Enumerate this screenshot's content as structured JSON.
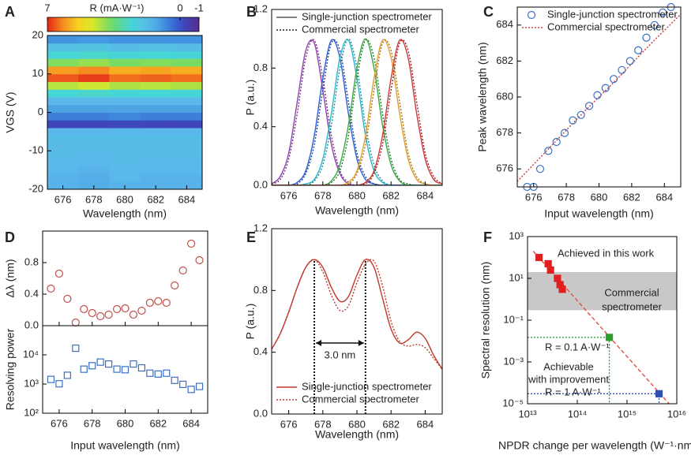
{
  "chart_data": [
    {
      "type": "heatmap",
      "panel_label": "A",
      "x_label": "Wavelength (nm)",
      "y_label": "VGS (V)",
      "xlim": [
        675,
        685
      ],
      "ylim": [
        -20,
        20
      ],
      "xticks": [
        676,
        678,
        680,
        682,
        684
      ],
      "yticks": [
        -20,
        -10,
        0,
        10,
        20
      ],
      "x": [
        676,
        678,
        680,
        682,
        684
      ],
      "y": [
        -19,
        -17,
        -15,
        -13,
        -11,
        -9,
        -7,
        -5,
        -3,
        -1,
        1,
        3,
        5,
        7,
        9,
        11,
        13,
        15,
        17,
        19
      ],
      "z": [
        [
          1.5,
          1.4,
          1.5,
          1.5,
          1.5
        ],
        [
          1.5,
          1.4,
          1.6,
          1.5,
          1.5
        ],
        [
          1.6,
          1.5,
          1.6,
          1.6,
          1.6
        ],
        [
          1.6,
          1.6,
          1.7,
          1.6,
          1.6
        ],
        [
          1.7,
          1.6,
          1.7,
          1.7,
          1.7
        ],
        [
          1.7,
          1.7,
          1.8,
          1.7,
          1.7
        ],
        [
          1.8,
          1.8,
          1.8,
          1.8,
          1.8
        ],
        [
          1.6,
          1.6,
          1.6,
          1.6,
          1.6
        ],
        [
          -0.3,
          -0.3,
          -0.2,
          -0.3,
          -0.3
        ],
        [
          0.6,
          0.6,
          0.7,
          0.6,
          0.6
        ],
        [
          1.2,
          1.2,
          1.2,
          1.2,
          1.2
        ],
        [
          1.6,
          1.6,
          1.6,
          1.6,
          1.6
        ],
        [
          2.6,
          2.7,
          2.6,
          2.6,
          2.6
        ],
        [
          4.3,
          4.5,
          4.2,
          4.3,
          4.2
        ],
        [
          6.6,
          6.8,
          6.4,
          6.5,
          6.4
        ],
        [
          6.0,
          6.2,
          5.8,
          5.9,
          5.8
        ],
        [
          3.8,
          4.0,
          3.7,
          3.8,
          3.7
        ],
        [
          2.6,
          2.7,
          2.5,
          2.6,
          2.5
        ],
        [
          1.9,
          2.0,
          1.8,
          1.9,
          1.8
        ],
        [
          0.9,
          1.0,
          0.9,
          0.9,
          0.9
        ]
      ],
      "colorbar": {
        "label": "R (mA·W⁻¹)",
        "clim": [
          7,
          -1
        ],
        "ticks": [
          7,
          0,
          -1
        ]
      }
    },
    {
      "type": "line",
      "panel_label": "B",
      "x_label": "Wavelength (nm)",
      "y_label": "P (a.u.)",
      "xlim": [
        675,
        685
      ],
      "ylim": [
        0,
        1.2
      ],
      "xticks": [
        676,
        678,
        680,
        682,
        684
      ],
      "yticks": [
        {
          "value": 0,
          "label": "0.0"
        },
        0.4,
        0.8,
        1.2
      ],
      "legend_loc": "upper left",
      "legend": [
        {
          "name": "Single-junction spectrometer",
          "color": "#555555",
          "style": "solid"
        },
        {
          "name": "Commercial spectrometer",
          "color": "#222222",
          "style": "dotted"
        }
      ],
      "x": [
        675,
        675.5,
        676,
        676.5,
        677,
        677.5,
        678,
        678.5,
        679,
        679.5,
        680,
        680.5,
        681,
        681.5,
        682,
        682.5,
        683,
        683.5,
        684,
        684.5,
        685
      ],
      "series": [
        {
          "kind": "line",
          "style": "solid",
          "color": "#8e44ad",
          "values": [
            0.01,
            0.06,
            0.22,
            0.57,
            0.92,
            0.97,
            0.65,
            0.28,
            0.08,
            0.01,
            0,
            0,
            0,
            0,
            0,
            0,
            0,
            0,
            0,
            0,
            0
          ]
        },
        {
          "kind": "line",
          "style": "dotted",
          "color": "#6c3483",
          "values": [
            0.01,
            0.04,
            0.18,
            0.49,
            0.87,
            0.99,
            0.73,
            0.34,
            0.1,
            0.02,
            0,
            0,
            0,
            0,
            0,
            0,
            0,
            0,
            0,
            0,
            0
          ]
        },
        {
          "kind": "line",
          "style": "solid",
          "color": "#2f5fd0",
          "values": [
            0,
            0,
            0,
            0.02,
            0.1,
            0.34,
            0.73,
            0.99,
            0.87,
            0.49,
            0.18,
            0.04,
            0.01,
            0,
            0,
            0,
            0,
            0,
            0,
            0,
            0
          ]
        },
        {
          "kind": "line",
          "style": "dotted",
          "color": "#1f3f9a",
          "values": [
            0,
            0,
            0,
            0.01,
            0.08,
            0.28,
            0.65,
            0.97,
            0.92,
            0.57,
            0.22,
            0.06,
            0.01,
            0,
            0,
            0,
            0,
            0,
            0,
            0,
            0
          ]
        },
        {
          "kind": "line",
          "style": "solid",
          "color": "#2bb5c8",
          "values": [
            0,
            0,
            0,
            0,
            0.01,
            0.04,
            0.18,
            0.49,
            0.87,
            0.99,
            0.73,
            0.34,
            0.1,
            0.02,
            0,
            0,
            0,
            0,
            0,
            0,
            0
          ]
        },
        {
          "kind": "line",
          "style": "dotted",
          "color": "#1a8a9a",
          "values": [
            0,
            0,
            0,
            0,
            0,
            0.03,
            0.14,
            0.41,
            0.8,
            1,
            0.8,
            0.41,
            0.14,
            0.03,
            0,
            0,
            0,
            0,
            0,
            0,
            0
          ]
        },
        {
          "kind": "line",
          "style": "solid",
          "color": "#3aa845",
          "values": [
            0,
            0,
            0,
            0,
            0,
            0,
            0,
            0.03,
            0.14,
            0.41,
            0.8,
            1,
            0.8,
            0.41,
            0.14,
            0.03,
            0,
            0,
            0,
            0,
            0
          ]
        },
        {
          "kind": "line",
          "style": "dotted",
          "color": "#24782e",
          "values": [
            0,
            0,
            0,
            0,
            0,
            0,
            0,
            0.02,
            0.1,
            0.34,
            0.73,
            0.99,
            0.87,
            0.49,
            0.18,
            0.04,
            0.01,
            0,
            0,
            0,
            0
          ]
        },
        {
          "kind": "line",
          "style": "solid",
          "color": "#e0a030",
          "values": [
            0,
            0,
            0,
            0,
            0,
            0,
            0,
            0,
            0,
            0.02,
            0.1,
            0.34,
            0.73,
            0.99,
            0.87,
            0.49,
            0.18,
            0.04,
            0.01,
            0,
            0
          ]
        },
        {
          "kind": "line",
          "style": "dotted",
          "color": "#a87418",
          "values": [
            0,
            0,
            0,
            0,
            0,
            0,
            0,
            0,
            0,
            0.01,
            0.08,
            0.28,
            0.65,
            0.97,
            0.92,
            0.57,
            0.22,
            0.06,
            0.01,
            0,
            0
          ]
        },
        {
          "kind": "line",
          "style": "solid",
          "color": "#d03a3a",
          "values": [
            0,
            0,
            0,
            0,
            0,
            0,
            0,
            0,
            0,
            0,
            0,
            0.02,
            0.1,
            0.34,
            0.73,
            0.99,
            0.87,
            0.49,
            0.18,
            0.04,
            0.01
          ]
        },
        {
          "kind": "line",
          "style": "dotted",
          "color": "#9a2222",
          "values": [
            0,
            0,
            0,
            0,
            0,
            0,
            0,
            0,
            0,
            0,
            0,
            0.01,
            0.08,
            0.28,
            0.65,
            0.97,
            0.92,
            0.57,
            0.22,
            0.06,
            0.01
          ]
        }
      ]
    },
    {
      "type": "scatter",
      "panel_label": "C",
      "x_label": "Input wavelength (nm)",
      "y_label": "Peak wavelength (nm)",
      "xlim": [
        675,
        685
      ],
      "ylim": [
        675,
        685
      ],
      "xticks": [
        676,
        678,
        680,
        682,
        684
      ],
      "yticks": [
        676,
        678,
        680,
        682,
        684
      ],
      "legend_loc": "upper left",
      "series": [
        {
          "name": "Single-junction spectrometer",
          "kind": "markers",
          "marker": "circle",
          "filled": false,
          "color": "#3b6fc4",
          "x": [
            675.6,
            676.0,
            676.4,
            676.9,
            677.4,
            677.9,
            678.4,
            678.9,
            679.4,
            679.9,
            680.4,
            680.9,
            681.4,
            681.9,
            682.4,
            682.9,
            683.4,
            683.9,
            684.4
          ],
          "values": [
            675,
            675,
            676,
            677,
            677.5,
            678,
            678.7,
            679,
            679.5,
            680.1,
            680.5,
            681,
            681.5,
            682,
            682.6,
            683.3,
            684,
            684.7,
            685
          ]
        },
        {
          "name": "Commercial spectrometer",
          "kind": "line",
          "style": "dotted",
          "color": "#d03a3a",
          "x": [
            675,
            677,
            679,
            681,
            683,
            685
          ],
          "values": [
            675.3,
            677.2,
            679.1,
            680.9,
            682.8,
            684.6
          ]
        }
      ]
    },
    {
      "type": "scatter",
      "panel_label": "D",
      "y_label": "Δλ (nm)",
      "xlim": [
        675,
        685
      ],
      "ylim": [
        0,
        1.2
      ],
      "xticks": [
        676,
        678,
        680,
        682,
        684
      ],
      "yticks": [
        {
          "value": 0,
          "label": "0.0"
        },
        0.4,
        0.8
      ],
      "x": [
        675.5,
        676,
        676.5,
        677,
        677.5,
        678,
        678.5,
        679,
        679.5,
        680,
        680.5,
        681,
        681.5,
        682,
        682.5,
        683,
        683.5,
        684,
        684.5
      ],
      "series": [
        {
          "kind": "markers",
          "marker": "circle",
          "filled": false,
          "color": "#c0504d",
          "values": [
            0.47,
            0.66,
            0.34,
            0.04,
            0.21,
            0.16,
            0.12,
            0.14,
            0.21,
            0.22,
            0.14,
            0.19,
            0.29,
            0.31,
            0.29,
            0.51,
            0.7,
            1.04,
            0.83
          ]
        }
      ]
    },
    {
      "type": "scatter",
      "x_label": "Input wavelength (nm)",
      "y_label": "Resolving power",
      "xlim": [
        675,
        685
      ],
      "ylim": [
        100,
        100000
      ],
      "ylog": true,
      "xticks": [
        676,
        678,
        680,
        682,
        684
      ],
      "yticks": [
        {
          "value": 100,
          "label": "10²"
        },
        {
          "value": 1000,
          "label": "10³"
        },
        {
          "value": 10000,
          "label": "10⁴"
        }
      ],
      "x": [
        675.5,
        676,
        676.5,
        677,
        677.5,
        678,
        678.5,
        679,
        679.5,
        680,
        680.5,
        681,
        681.5,
        682,
        682.5,
        683,
        683.5,
        684,
        684.5
      ],
      "series": [
        {
          "kind": "markers",
          "marker": "square",
          "filled": false,
          "color": "#3b6fc4",
          "values": [
            1440,
            1020,
            1990,
            16900,
            3230,
            4240,
            5650,
            4850,
            3240,
            3090,
            4860,
            3580,
            2350,
            2200,
            2350,
            1340,
            975,
            657,
            825
          ]
        }
      ]
    },
    {
      "type": "line",
      "panel_label": "E",
      "x_label": "Wavelength (nm)",
      "y_label": "P (a.u.)",
      "xlim": [
        675,
        685
      ],
      "ylim": [
        0,
        1.2
      ],
      "xticks": [
        676,
        678,
        680,
        682,
        684
      ],
      "yticks": [
        {
          "value": 0,
          "label": "0.0"
        },
        0.4,
        0.8,
        1.2
      ],
      "legend_loc": "lower left",
      "x": [
        675,
        675.5,
        676,
        676.5,
        677,
        677.5,
        678,
        678.5,
        679,
        679.5,
        680,
        680.5,
        681,
        681.5,
        682,
        682.5,
        683,
        683.5,
        684,
        684.5,
        685
      ],
      "series": [
        {
          "name": "Single-junction spectrometer",
          "kind": "line",
          "style": "solid",
          "color": "#c0392b",
          "values": [
            0.42,
            0.52,
            0.66,
            0.82,
            0.95,
            1.0,
            0.95,
            0.82,
            0.73,
            0.76,
            0.9,
            1.0,
            0.95,
            0.75,
            0.55,
            0.46,
            0.48,
            0.53,
            0.49,
            0.38,
            0.29
          ]
        },
        {
          "name": "Commercial spectrometer",
          "kind": "line",
          "style": "dotted",
          "color": "#c0392b",
          "values": [
            0.42,
            0.52,
            0.66,
            0.82,
            0.95,
            1.0,
            0.92,
            0.77,
            0.67,
            0.7,
            0.85,
            0.97,
            0.99,
            0.83,
            0.6,
            0.47,
            0.44,
            0.45,
            0.43,
            0.36,
            0.29
          ]
        }
      ],
      "peak_markers": [
        677.5,
        680.5
      ],
      "annotation": "3.0 nm"
    },
    {
      "type": "scatter",
      "panel_label": "F",
      "x_label": "NPDR change per wavelength (W⁻¹·nm⁻¹)",
      "y_label": "Spectral resolution (nm)",
      "xlim": [
        10000000000000.0,
        1e+16
      ],
      "ylim": [
        1e-05,
        1000
      ],
      "xlog": true,
      "ylog": true,
      "xticks": [
        {
          "value": 10000000000000.0,
          "label": "10¹³"
        },
        {
          "value": 100000000000000.0,
          "label": "10¹⁴"
        },
        {
          "value": 1000000000000000.0,
          "label": "10¹⁵"
        },
        {
          "value": 1e+16,
          "label": "10¹⁶"
        }
      ],
      "yticks": [
        {
          "value": 1e-05,
          "label": "10⁻⁵"
        },
        {
          "value": 0.001,
          "label": "10⁻³"
        },
        {
          "value": 0.1,
          "label": "10⁻¹"
        },
        {
          "value": 10,
          "label": "10¹"
        },
        {
          "value": 1000,
          "label": "10³"
        }
      ],
      "band": {
        "from": 0.3,
        "to": 20,
        "color": "#c8c8c8",
        "text": [
          "Commercial",
          "spectrometer"
        ]
      },
      "series": [
        {
          "kind": "line",
          "style": "dashed",
          "color": "#e05040",
          "x": [
            13000000000000.0,
            7000000000000000.0
          ],
          "values": [
            200,
            1e-05
          ]
        },
        {
          "kind": "line",
          "style": "dotted",
          "color": "#2ca02c",
          "x": [
            10000000000000.0,
            440000000000000.0,
            440000000000000.0
          ],
          "values": [
            0.015,
            0.015,
            1e-05
          ]
        },
        {
          "kind": "line",
          "style": "dotted",
          "color": "#3050b0",
          "x": [
            10000000000000.0,
            4400000000000000.0,
            4400000000000000.0
          ],
          "values": [
            3e-05,
            3e-05,
            1e-05
          ]
        },
        {
          "kind": "markers",
          "marker": "square",
          "filled": true,
          "color": "#e02020",
          "x": [
            17000000000000.0,
            26000000000000.0,
            29000000000000.0,
            40000000000000.0,
            45000000000000.0,
            50000000000000.0
          ],
          "values": [
            100,
            50,
            25,
            10,
            5,
            3
          ]
        },
        {
          "kind": "markers",
          "marker": "square",
          "filled": true,
          "color": "#2ca02c",
          "x": [
            440000000000000.0
          ],
          "values": [
            0.015
          ]
        },
        {
          "kind": "markers",
          "marker": "square",
          "filled": true,
          "color": "#3050b0",
          "x": [
            4400000000000000.0
          ],
          "values": [
            3e-05
          ]
        }
      ],
      "annotations": [
        {
          "text": "Achieved in this work",
          "color": "#222222"
        },
        {
          "text": "R = 0.1 A·W⁻¹",
          "color": "#2ca02c"
        },
        {
          "text": "Achievable",
          "color": "#222222"
        },
        {
          "text": "with improvement",
          "color": "#222222"
        },
        {
          "text": "R = 1 A·W⁻¹",
          "color": "#3050b0"
        }
      ]
    }
  ]
}
